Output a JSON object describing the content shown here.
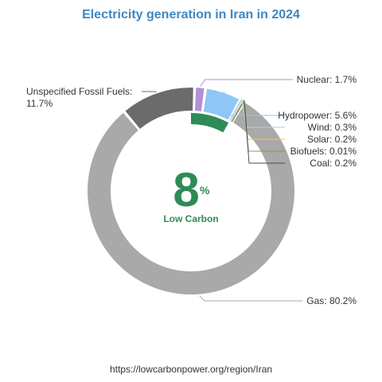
{
  "title": "Electricity generation in Iran in 2024",
  "source": "https://lowcarbonpower.org/region/Iran",
  "center": {
    "value": "8",
    "unit": "%",
    "label": "Low Carbon"
  },
  "chart_data": {
    "type": "pie",
    "variant": "donut",
    "title": "Electricity generation in Iran in 2024",
    "slices": [
      {
        "name": "Nuclear",
        "label": "Nuclear: 1.7%",
        "value": 1.7,
        "color": "#b48fd6"
      },
      {
        "name": "Hydropower",
        "label": "Hydropower: 5.6%",
        "value": 5.6,
        "color": "#8ec6f5"
      },
      {
        "name": "Wind",
        "label": "Wind: 0.3%",
        "value": 0.3,
        "color": "#9fd6f0"
      },
      {
        "name": "Solar",
        "label": "Solar: 0.2%",
        "value": 0.2,
        "color": "#f5c542"
      },
      {
        "name": "Biofuels",
        "label": "Biofuels: 0.01%",
        "value": 0.01,
        "color": "#6aa84f"
      },
      {
        "name": "Coal",
        "label": "Coal: 0.2%",
        "value": 0.2,
        "color": "#4a4a4a"
      },
      {
        "name": "Gas",
        "label": "Gas: 80.2%",
        "value": 80.2,
        "color": "#a9a9a9"
      },
      {
        "name": "Unspecified Fossil Fuels",
        "label": [
          "Unspecified Fossil Fuels:",
          "11.7%"
        ],
        "value": 11.7,
        "color": "#6b6b6b"
      }
    ],
    "low_carbon_share": 8,
    "low_carbon_color": "#2e8b57"
  }
}
